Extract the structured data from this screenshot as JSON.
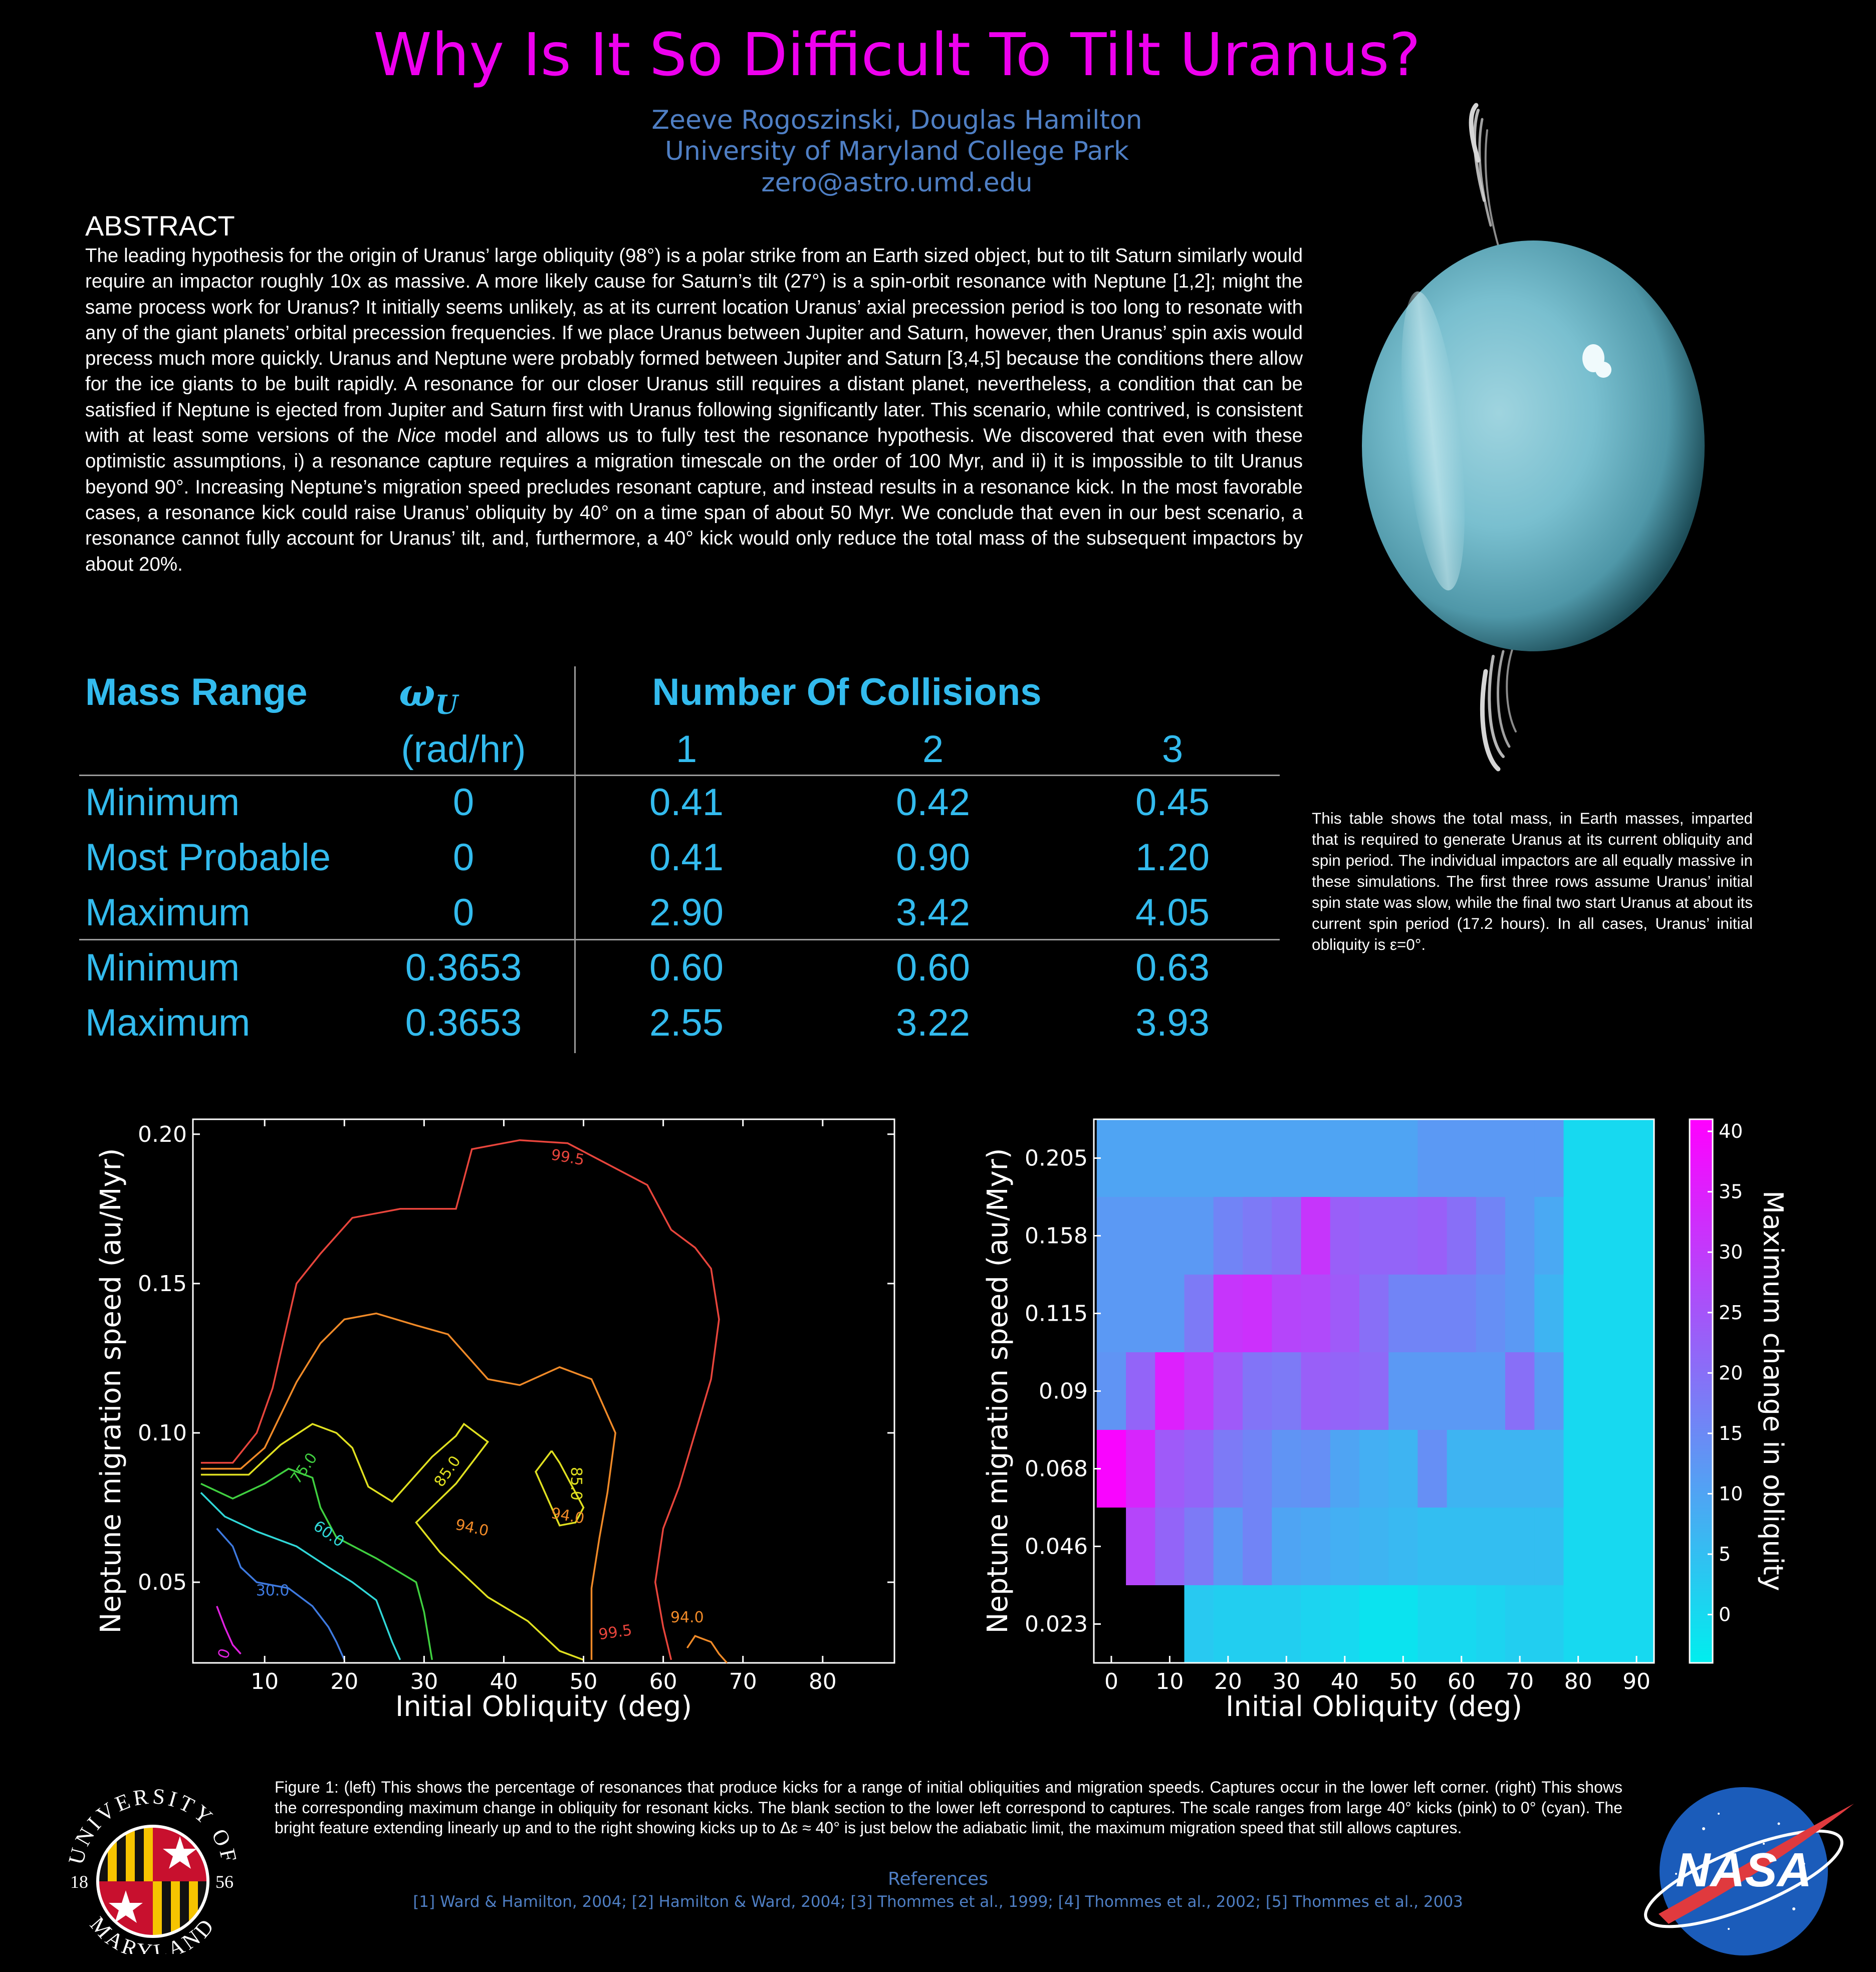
{
  "title": "Why Is It So Difficult To Tilt Uranus?",
  "authors": "Zeeve Rogoszinski, Douglas Hamilton",
  "affiliation": "University of Maryland College Park",
  "email": "zero@astro.umd.edu",
  "abstract": {
    "heading": "ABSTRACT",
    "before_italic": "The leading hypothesis for the origin of Uranus’ large obliquity (98°) is a polar strike from an Earth sized object, but to tilt Saturn similarly would require an impactor roughly 10x as massive. A more likely cause for Saturn’s tilt (27°) is a spin-orbit resonance with Neptune [1,2]; might the same process work for Uranus? It initially seems unlikely, as at its current location Uranus’ axial precession period is too long to resonate with any of the giant planets’ orbital precession frequencies. If we place Uranus between Jupiter and Saturn, however, then Uranus’ spin axis would precess much more quickly. Uranus and Neptune were probably formed between Jupiter and Saturn [3,4,5] because the conditions there allow for the ice giants to be built rapidly. A resonance for our closer Uranus still requires a distant planet, nevertheless, a condition that can be satisfied if Neptune is ejected from Jupiter and Saturn first with Uranus following significantly later. This scenario, while contrived, is consistent with at least some versions of the ",
    "italic": "Nice",
    "after_italic": " model and allows us to fully test the resonance hypothesis. We discovered that even with these optimistic assumptions, i) a resonance capture requires a migration timescale on the order of 100 Myr, and ii) it is impossible to tilt Uranus beyond 90°. Increasing Neptune’s migration speed precludes resonant capture, and instead results in a resonance kick. In the most favorable cases, a resonance kick could raise Uranus’ obliquity by 40° on a time span of about 50 Myr. We conclude that even in our best scenario, a resonance cannot fully account for Uranus’ tilt, and, furthermore, a 40° kick would only reduce the total mass of the subsequent impactors by about 20%."
  },
  "table": {
    "col_mass": "Mass Range",
    "col_omega": "ω",
    "col_omega_sub": "U",
    "col_omega_unit": "(rad/hr)",
    "col_collisions": "Number Of Collisions",
    "collision_counts": [
      "1",
      "2",
      "3"
    ],
    "rows": [
      {
        "label": "Minimum",
        "omega": "0",
        "c1": "0.41",
        "c2": "0.42",
        "c3": "0.45"
      },
      {
        "label": "Most Probable",
        "omega": "0",
        "c1": "0.41",
        "c2": "0.90",
        "c3": "1.20"
      },
      {
        "label": "Maximum",
        "omega": "0",
        "c1": "2.90",
        "c2": "3.42",
        "c3": "4.05"
      },
      {
        "label": "Minimum",
        "omega": "0.3653",
        "c1": "0.60",
        "c2": "0.60",
        "c3": "0.63"
      },
      {
        "label": "Maximum",
        "omega": "0.3653",
        "c1": "2.55",
        "c2": "3.22",
        "c3": "3.93"
      }
    ],
    "caption": "This table shows the total mass, in Earth masses, imparted that is required to generate Uranus at its current obliquity and spin period. The individual impactors are all equally massive in these simulations. The first three rows assume Uranus’ initial spin state was slow, while the final two start Uranus at about its current spin period (17.2 hours). In all cases, Uranus’ initial obliquity is ε=0°."
  },
  "chart_data": [
    {
      "type": "contour",
      "xlabel": "Initial Obliquity (deg)",
      "ylabel": "Neptune migration speed (au/Myr)",
      "xlim": [
        1,
        89
      ],
      "ylim": [
        0.023,
        0.205
      ],
      "xticks": [
        "10",
        "20",
        "30",
        "40",
        "50",
        "60",
        "70",
        "80"
      ],
      "yticks": [
        "0.05",
        "0.10",
        "0.15",
        "0.20"
      ],
      "contour_labels": [
        "99.5",
        "94.0",
        "85.0",
        "75.0",
        "60.0",
        "30.0",
        "85.0",
        "94.0",
        "99.5",
        "94.0",
        "0"
      ],
      "level_colors": {
        "99.5": "#e8453c",
        "94.0": "#f08a28",
        "85.0": "#e0e020",
        "75.0": "#40d040",
        "60.0": "#30d8d8",
        "30.0": "#3e7ae0",
        "0": "#e020e0"
      },
      "contours": [
        {
          "level": "99.5",
          "points": [
            [
              2,
              0.09
            ],
            [
              6,
              0.09
            ],
            [
              9,
              0.1
            ],
            [
              11,
              0.115
            ],
            [
              14,
              0.15
            ],
            [
              17,
              0.16
            ],
            [
              21,
              0.172
            ],
            [
              27,
              0.175
            ],
            [
              34,
              0.175
            ],
            [
              36,
              0.195
            ],
            [
              42,
              0.198
            ],
            [
              48,
              0.197
            ],
            [
              53,
              0.19
            ],
            [
              58,
              0.183
            ],
            [
              61,
              0.168
            ],
            [
              64,
              0.162
            ],
            [
              66,
              0.155
            ],
            [
              67,
              0.138
            ],
            [
              66,
              0.118
            ],
            [
              64,
              0.1
            ],
            [
              62,
              0.082
            ],
            [
              60,
              0.068
            ],
            [
              59,
              0.05
            ],
            [
              60,
              0.035
            ],
            [
              61,
              0.024
            ]
          ]
        },
        {
          "level": "94.0",
          "points": [
            [
              2,
              0.088
            ],
            [
              7,
              0.088
            ],
            [
              10,
              0.095
            ],
            [
              14,
              0.117
            ],
            [
              17,
              0.13
            ],
            [
              20,
              0.138
            ],
            [
              24,
              0.14
            ],
            [
              29,
              0.136
            ],
            [
              33,
              0.133
            ],
            [
              38,
              0.118
            ],
            [
              42,
              0.116
            ],
            [
              47,
              0.122
            ],
            [
              51,
              0.118
            ],
            [
              54,
              0.1
            ],
            [
              53,
              0.08
            ],
            [
              52,
              0.065
            ],
            [
              51,
              0.048
            ],
            [
              51,
              0.024
            ]
          ]
        },
        {
          "level": "94.0",
          "points": [
            [
              63,
              0.028
            ],
            [
              64,
              0.032
            ],
            [
              66,
              0.03
            ],
            [
              67,
              0.026
            ],
            [
              68,
              0.023
            ]
          ]
        },
        {
          "level": "85.0",
          "points": [
            [
              2,
              0.086
            ],
            [
              8,
              0.086
            ],
            [
              12,
              0.096
            ],
            [
              16,
              0.103
            ],
            [
              19,
              0.1
            ],
            [
              21,
              0.095
            ],
            [
              23,
              0.082
            ],
            [
              26,
              0.077
            ],
            [
              31,
              0.092
            ],
            [
              34,
              0.099
            ],
            [
              35,
              0.103
            ],
            [
              38,
              0.097
            ],
            [
              34,
              0.083
            ],
            [
              29,
              0.07
            ],
            [
              32,
              0.06
            ],
            [
              38,
              0.045
            ],
            [
              43,
              0.037
            ],
            [
              47,
              0.027
            ],
            [
              50,
              0.024
            ]
          ]
        },
        {
          "level": "85.0",
          "points": [
            [
              46,
              0.094
            ],
            [
              47,
              0.09
            ],
            [
              48,
              0.085
            ],
            [
              50,
              0.075
            ],
            [
              49,
              0.07
            ],
            [
              47,
              0.069
            ],
            [
              46,
              0.075
            ],
            [
              44,
              0.087
            ],
            [
              46,
              0.094
            ]
          ]
        },
        {
          "level": "75.0",
          "points": [
            [
              2,
              0.083
            ],
            [
              6,
              0.078
            ],
            [
              10,
              0.083
            ],
            [
              13,
              0.088
            ],
            [
              16,
              0.085
            ],
            [
              17,
              0.075
            ],
            [
              19,
              0.065
            ],
            [
              24,
              0.058
            ],
            [
              29,
              0.05
            ],
            [
              30,
              0.04
            ],
            [
              31,
              0.024
            ]
          ]
        },
        {
          "level": "60.0",
          "points": [
            [
              2,
              0.08
            ],
            [
              5,
              0.072
            ],
            [
              9,
              0.067
            ],
            [
              14,
              0.062
            ],
            [
              18,
              0.055
            ],
            [
              21,
              0.05
            ],
            [
              24,
              0.044
            ],
            [
              26,
              0.03
            ],
            [
              27,
              0.024
            ]
          ]
        },
        {
          "level": "30.0",
          "points": [
            [
              4,
              0.068
            ],
            [
              6,
              0.062
            ],
            [
              7,
              0.055
            ],
            [
              9,
              0.05
            ],
            [
              13,
              0.048
            ],
            [
              16,
              0.042
            ],
            [
              18,
              0.035
            ],
            [
              19,
              0.03
            ],
            [
              20,
              0.024
            ]
          ]
        },
        {
          "level": "0",
          "points": [
            [
              4,
              0.042
            ],
            [
              5,
              0.035
            ],
            [
              6,
              0.029
            ],
            [
              7,
              0.026
            ]
          ]
        }
      ]
    },
    {
      "type": "heatmap",
      "xlabel": "Initial Obliquity (deg)",
      "ylabel": "Neptune migration speed (au/Myr)",
      "xlim": [
        -3,
        93
      ],
      "x_bin_width": 5,
      "xticks": [
        "0",
        "10",
        "20",
        "30",
        "40",
        "50",
        "60",
        "70",
        "80",
        "90"
      ],
      "y_categories": [
        "0.205",
        "0.158",
        "0.115",
        "0.09",
        "0.068",
        "0.046",
        "0.023"
      ],
      "colorbar": {
        "label": "Maximum change in obliquity",
        "min": -4,
        "max": 41,
        "ticks": [
          "40",
          "35",
          "30",
          "25",
          "20",
          "15",
          "10",
          "5",
          "0"
        ],
        "low_color": "#00eeee",
        "high_color": "#ff00ff",
        "blank_color": "#000000"
      },
      "values": [
        [
          10,
          10,
          10,
          10,
          10,
          10,
          10,
          10,
          10,
          10,
          10,
          12,
          12,
          12,
          12,
          12,
          0,
          0,
          0,
          0
        ],
        [
          12,
          12,
          12,
          12,
          16,
          18,
          20,
          31,
          23,
          22,
          22,
          23,
          20,
          16,
          12,
          9,
          0,
          0,
          0,
          0
        ],
        [
          12,
          12,
          12,
          18,
          31,
          32,
          28,
          27,
          24,
          20,
          16,
          16,
          16,
          14,
          12,
          7,
          0,
          0,
          0,
          0
        ],
        [
          13,
          22,
          35,
          30,
          24,
          19,
          18,
          23,
          22,
          21,
          12,
          12,
          12,
          12,
          20,
          12,
          0,
          0,
          0,
          0
        ],
        [
          40,
          34,
          24,
          22,
          18,
          16,
          13,
          14,
          10,
          8,
          7,
          14,
          7,
          7,
          7,
          7,
          0,
          0,
          0,
          0
        ],
        [
          null,
          28,
          22,
          18,
          12,
          16,
          10,
          9,
          8,
          7,
          6,
          5,
          5,
          5,
          5,
          5,
          0,
          0,
          0,
          0
        ],
        [
          null,
          null,
          null,
          3,
          2,
          2,
          2,
          1,
          0,
          -2,
          -2,
          0,
          0,
          1,
          2,
          2,
          0,
          0,
          0,
          0
        ]
      ]
    }
  ],
  "figure_caption": "Figure 1: (left) This shows the percentage of resonances that produce kicks for a range of initial obliquities and migration speeds. Captures occur in the lower left corner. (right) This shows the corresponding maximum change in obliquity for resonant kicks. The blank section to the lower left correspond to captures. The scale ranges from large 40° kicks (pink) to 0° (cyan). The bright feature extending linearly up and to the right showing kicks up to Δε ≈ 40° is just below the adiabatic limit, the maximum migration speed that still allows captures.",
  "references": {
    "heading": "References",
    "text": "[1] Ward & Hamilton, 2004; [2] Hamilton & Ward, 2004; [3] Thommes et al., 1999; [4] Thommes et al., 2002; [5] Thommes et al., 2003"
  },
  "logos": {
    "umd_text_top": "UNIVERSITY OF",
    "umd_text_bottom": "MARYLAND",
    "umd_year_left": "18",
    "umd_year_right": "56",
    "nasa_text": "NASA"
  },
  "colors": {
    "title": "#ee00ee",
    "author": "#4f7fc4",
    "table_text": "#33bbee",
    "background": "#000000"
  }
}
